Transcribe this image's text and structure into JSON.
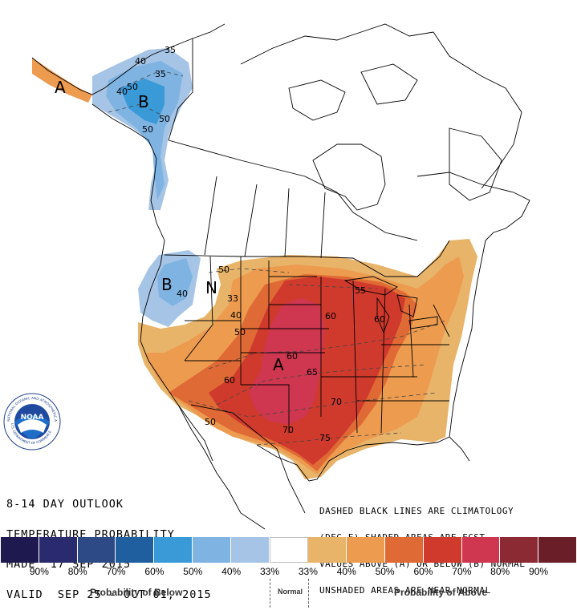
{
  "outlook": {
    "line1": "8-14 DAY OUTLOOK",
    "line2": "TEMPERATURE PROBABILITY",
    "line3": "MADE  17 SEP 2015",
    "line4": "VALID  SEP 25 - OCT 01, 2015"
  },
  "notes": {
    "line1": "DASHED BLACK LINES ARE CLIMATOLOGY",
    "line2": "(DEG F) SHADED AREAS ARE FCST",
    "line3": "VALUES ABOVE (A) OR BELOW (B) NORMAL",
    "line4": "UNSHADED AREAS ARE NEAR-NORMAL"
  },
  "logo": {
    "text": "NOAA",
    "ring_text": "NATIONAL OCEANIC AND ATMOSPHERIC ADMINISTRATION",
    "ring_text_bottom": "U.S. DEPARTMENT OF COMMERCE"
  },
  "map_labels": {
    "alaska_a": "A",
    "alaska_b": "B",
    "pnw_b": "B",
    "pnw_n": "N",
    "plains_a": "A",
    "ak_40": "40",
    "ak_35a": "35",
    "ak_35b": "35",
    "ak_40b": "40",
    "ak_50a": "50",
    "ak_50b": "50",
    "ak_50c": "50",
    "pnw_40": "40",
    "nw_50": "50",
    "nw_33": "33",
    "nw_40": "40",
    "nw_50b": "50",
    "c_60": "60",
    "c_65": "65",
    "c_55": "55",
    "c_60b": "60",
    "c_60c": "60",
    "c_70": "70",
    "c_70b": "70",
    "c_75": "75",
    "c_50": "50",
    "sw_60": "60"
  },
  "legend": {
    "colors": [
      "#1e1a4f",
      "#2a2a6e",
      "#2d4a86",
      "#1f5fa0",
      "#3a9ad8",
      "#7fb3e2",
      "#a6c5e6",
      "#ffffff",
      "#e8b46a",
      "#ec9b4f",
      "#e06a35",
      "#cf3a2c",
      "#cf3650",
      "#8c2a33",
      "#6a1f28"
    ],
    "ticks": [
      "90%",
      "80%",
      "70%",
      "60%",
      "50%",
      "40%",
      "33%",
      "33%",
      "40%",
      "50%",
      "60%",
      "70%",
      "80%",
      "90%"
    ],
    "below_label": "Probability of Below",
    "normal_label": "Normal",
    "above_label": "Probability of Above"
  }
}
